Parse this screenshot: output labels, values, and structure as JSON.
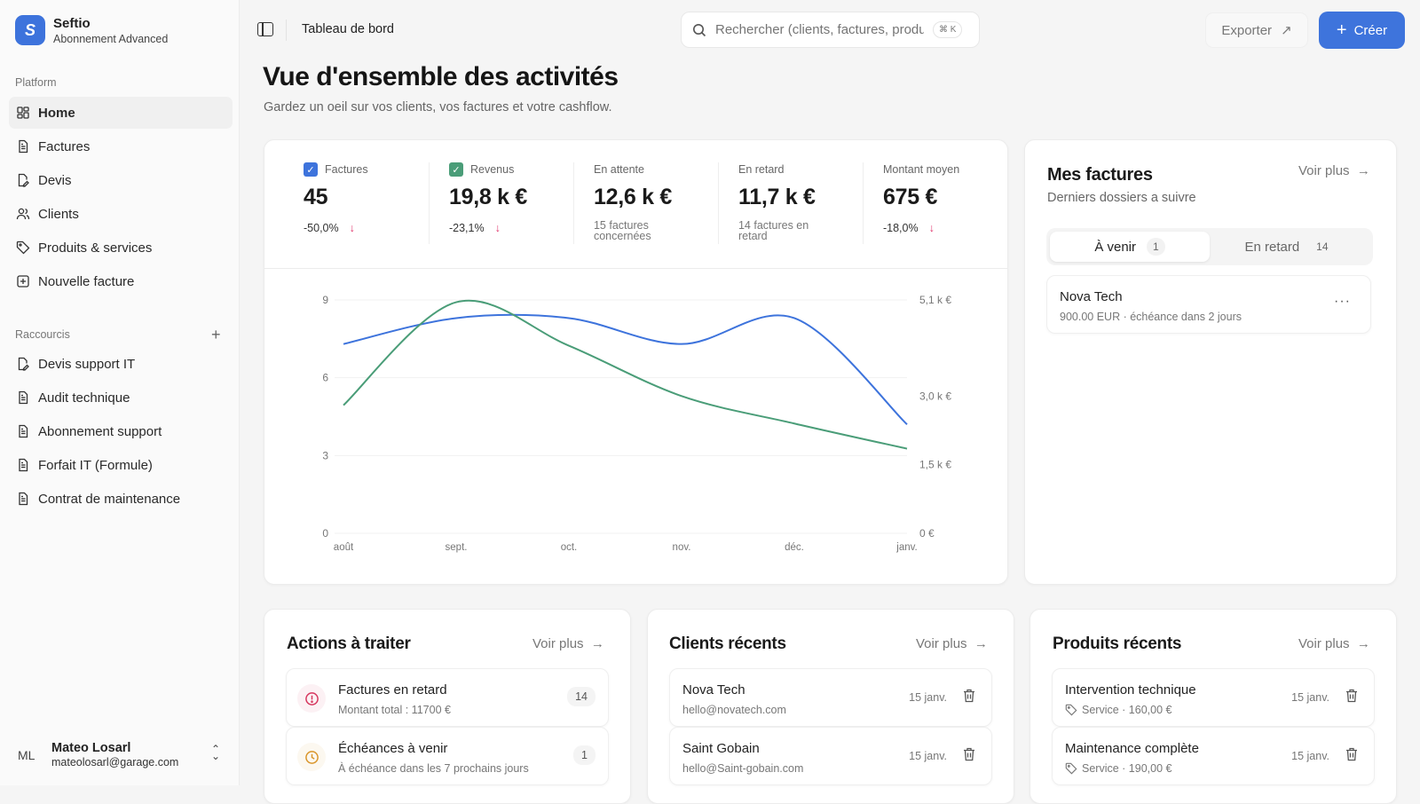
{
  "brand": {
    "name": "Seftio",
    "plan": "Abonnement Advanced",
    "logo_letter": "S",
    "color": "#3d73dc"
  },
  "sidebar": {
    "platform_label": "Platform",
    "items": [
      {
        "label": "Home",
        "icon": "grid-icon",
        "active": true
      },
      {
        "label": "Factures",
        "icon": "file-icon"
      },
      {
        "label": "Devis",
        "icon": "file-edit-icon"
      },
      {
        "label": "Clients",
        "icon": "users-icon"
      },
      {
        "label": "Produits & services",
        "icon": "tag-icon"
      },
      {
        "label": "Nouvelle facture",
        "icon": "plus-square-icon"
      }
    ],
    "shortcuts_label": "Raccourcis",
    "shortcuts": [
      {
        "label": "Devis support IT",
        "icon": "file-edit-icon"
      },
      {
        "label": "Audit technique",
        "icon": "file-icon"
      },
      {
        "label": "Abonnement support",
        "icon": "file-icon"
      },
      {
        "label": "Forfait IT (Formule)",
        "icon": "file-icon"
      },
      {
        "label": "Contrat de maintenance",
        "icon": "file-icon"
      }
    ],
    "user": {
      "initials": "ML",
      "name": "Mateo Losarl",
      "email": "mateolosarl@garage.com"
    }
  },
  "topbar": {
    "breadcrumb": "Tableau de bord",
    "search_placeholder": "Rechercher (clients, factures, produits...)",
    "shortcut": "⌘ K",
    "export_label": "Exporter",
    "create_label": "Créer",
    "accent": "#3e74dc"
  },
  "page": {
    "title": "Vue d'ensemble des activités",
    "subtitle": "Gardez un oeil sur vos clients, vos factures et votre cashflow."
  },
  "stats": [
    {
      "label": "Factures",
      "value": "45",
      "delta": "-50,0%",
      "checked": true,
      "color": "#3d73dc"
    },
    {
      "label": "Revenus",
      "value": "19,8 k €",
      "delta": "-23,1%",
      "checked": true,
      "color": "#4a9d78"
    },
    {
      "label": "En attente",
      "value": "12,6 k €",
      "note": "15 factures concernées"
    },
    {
      "label": "En retard",
      "value": "11,7 k €",
      "note": "14 factures en retard"
    },
    {
      "label": "Montant moyen",
      "value": "675 €",
      "delta": "-18,0%"
    }
  ],
  "chart_data": {
    "type": "line",
    "categories": [
      "août",
      "sept.",
      "oct.",
      "nov.",
      "déc.",
      "janv."
    ],
    "left_axis": {
      "ticks": [
        "0",
        "3",
        "6",
        "9"
      ],
      "ylim": [
        0,
        9
      ]
    },
    "right_axis": {
      "ticks": [
        "0 €",
        "1,5 k €",
        "3,0 k €",
        "5,1 k €"
      ],
      "tick_values": [
        0,
        1500,
        3000,
        5100
      ],
      "ylim": [
        0,
        5100
      ]
    },
    "series": [
      {
        "name": "Factures",
        "axis": "left",
        "color": "#3d73dc",
        "values": [
          7.3,
          8.3,
          8.3,
          7.3,
          8.3,
          4.2
        ]
      },
      {
        "name": "Revenus",
        "axis": "right",
        "color": "#4a9d78",
        "values": [
          2800,
          5050,
          4100,
          3000,
          2400,
          1850
        ]
      }
    ],
    "grid": true,
    "curve": "smooth"
  },
  "invoices": {
    "title": "Mes factures",
    "subtitle": "Derniers dossiers a suivre",
    "more": "Voir plus",
    "tabs": [
      {
        "label": "À venir",
        "count": "1",
        "active": true
      },
      {
        "label": "En retard",
        "count": "14"
      }
    ],
    "items": [
      {
        "name": "Nova Tech",
        "detail": "900.00 EUR · échéance dans 2 jours"
      }
    ]
  },
  "actions": {
    "title": "Actions à traiter",
    "more": "Voir plus",
    "items": [
      {
        "title": "Factures en retard",
        "detail": "Montant total : 11700 €",
        "count": "14",
        "icon": "alert-circle-icon",
        "color": "#d6365e"
      },
      {
        "title": "Échéances à venir",
        "detail": "À échéance dans les 7 prochains jours",
        "count": "1",
        "icon": "clock-icon",
        "color": "#d9952a"
      }
    ]
  },
  "clients": {
    "title": "Clients récents",
    "more": "Voir plus",
    "items": [
      {
        "name": "Nova Tech",
        "email": "hello@novatech.com",
        "date": "15 janv."
      },
      {
        "name": "Saint Gobain",
        "email": "hello@Saint-gobain.com",
        "date": "15 janv."
      }
    ]
  },
  "products": {
    "title": "Produits récents",
    "more": "Voir plus",
    "items": [
      {
        "name": "Intervention technique",
        "detail": "Service · 160,00 €",
        "date": "15 janv."
      },
      {
        "name": "Maintenance complète",
        "detail": "Service · 190,00 €",
        "date": "15 janv."
      }
    ]
  }
}
